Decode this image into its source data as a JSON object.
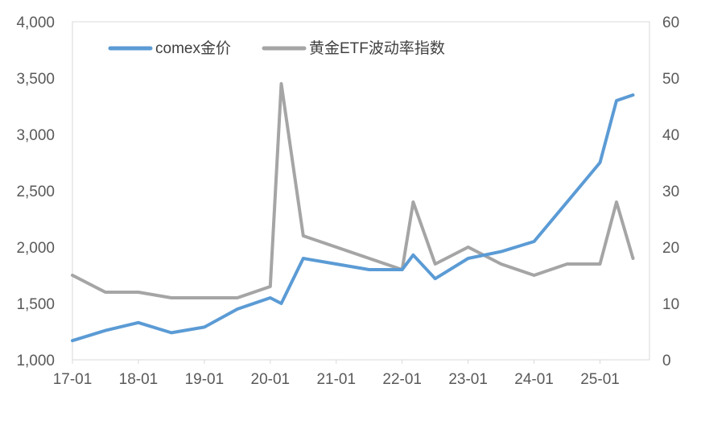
{
  "chart_data": {
    "type": "line",
    "x": [
      "17-01",
      "17-07",
      "18-01",
      "18-07",
      "19-01",
      "19-07",
      "20-01",
      "20-03",
      "20-07",
      "21-01",
      "21-07",
      "22-01",
      "22-03",
      "22-07",
      "23-01",
      "23-07",
      "24-01",
      "24-07",
      "25-01",
      "25-04",
      "25-07"
    ],
    "series": [
      {
        "name": "comex金价",
        "axis": "left",
        "color": "#5b9bd5",
        "values": [
          1170,
          1260,
          1330,
          1240,
          1290,
          1450,
          1550,
          1500,
          1900,
          1850,
          1800,
          1800,
          1930,
          1720,
          1900,
          1960,
          2050,
          2400,
          2750,
          3300,
          3350
        ]
      },
      {
        "name": "黄金ETF波动率指数",
        "axis": "right",
        "color": "#a5a5a5",
        "values": [
          15,
          12,
          12,
          11,
          11,
          11,
          13,
          49,
          22,
          20,
          18,
          16,
          28,
          17,
          20,
          17,
          15,
          17,
          17,
          28,
          18
        ]
      }
    ],
    "x_ticks": [
      "17-01",
      "18-01",
      "19-01",
      "20-01",
      "21-01",
      "22-01",
      "23-01",
      "24-01",
      "25-01"
    ],
    "y_left": {
      "min": 1000,
      "max": 4000,
      "ticks": [
        "1,000",
        "1,500",
        "2,000",
        "2,500",
        "3,000",
        "3,500",
        "4,000"
      ]
    },
    "y_right": {
      "min": 0,
      "max": 60,
      "ticks": [
        "0",
        "10",
        "20",
        "30",
        "40",
        "50",
        "60"
      ]
    },
    "legend_position": "top-left",
    "grid": false
  }
}
